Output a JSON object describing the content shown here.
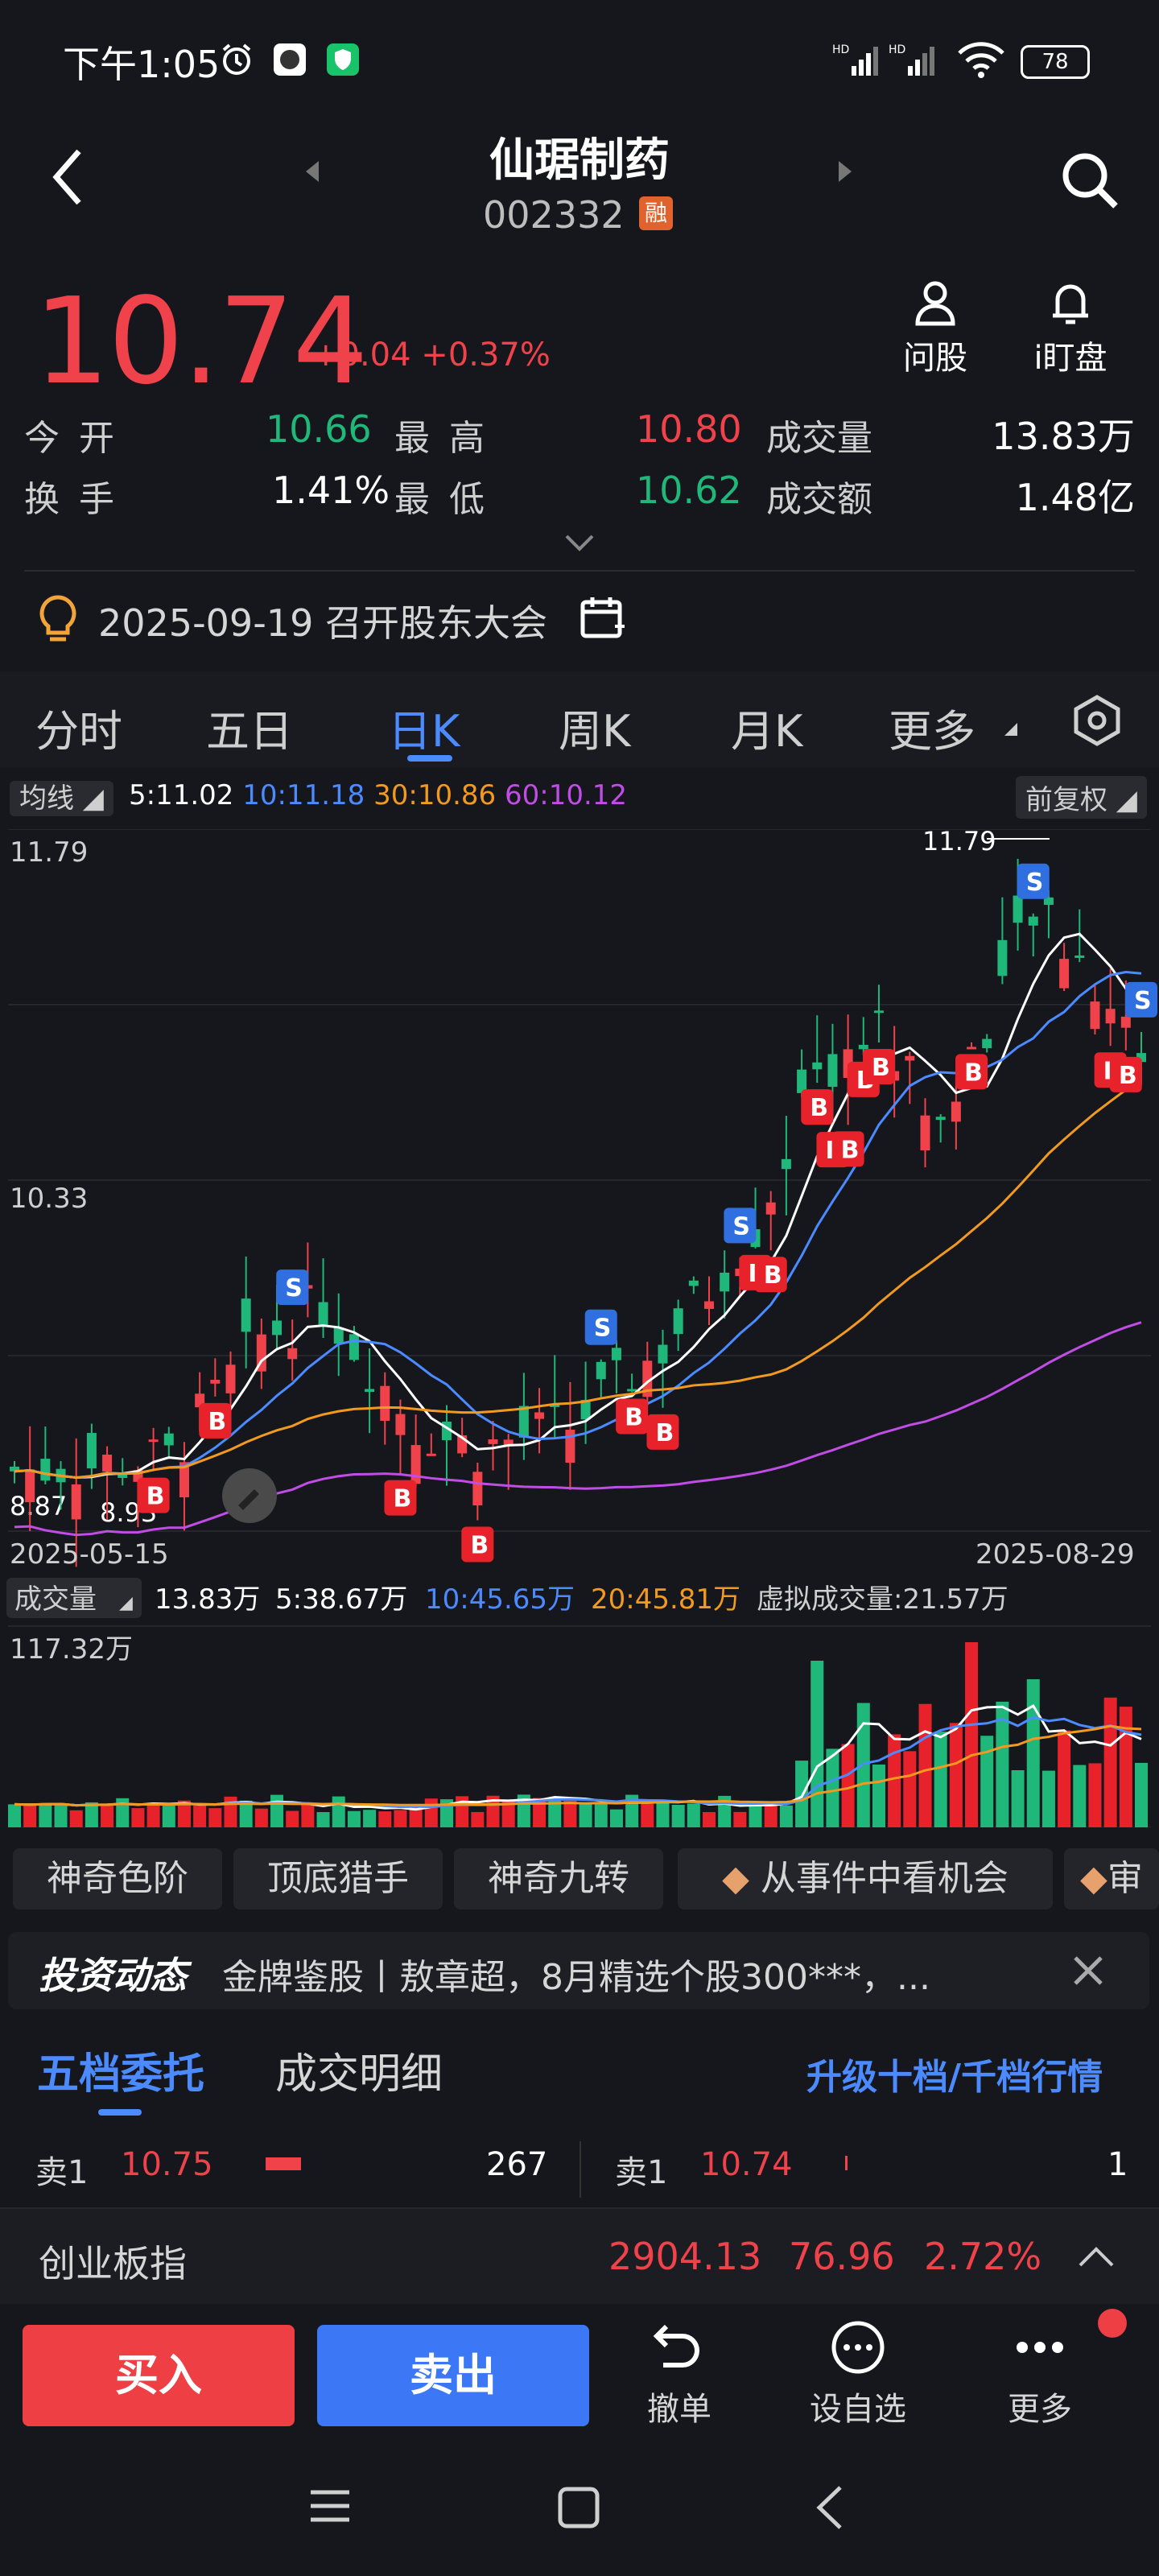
{
  "status_bar": {
    "time": "下午1:05",
    "battery": "78",
    "icons": [
      "alarm-icon",
      "app-icon",
      "shield-app-icon",
      "hd-signal-icon",
      "hd-signal-icon",
      "wifi-icon",
      "battery-icon"
    ]
  },
  "header": {
    "title": "仙琚制药",
    "code": "002332",
    "badge": "融"
  },
  "quote": {
    "price": "10.74",
    "change": "+0.04",
    "change_pct": "+0.37%",
    "action_ask": "问股",
    "action_watch": "i盯盘",
    "open_label": "今开",
    "open": "10.66",
    "high_label": "最高",
    "high": "10.80",
    "vol_label": "成交量",
    "vol": "13.83万",
    "turnover_label": "换手",
    "turnover": "1.41%",
    "low_label": "最低",
    "low": "10.62",
    "amount_label": "成交额",
    "amount": "1.48亿"
  },
  "event": {
    "text": "2025-09-19 召开股东大会"
  },
  "tabs": [
    "分时",
    "五日",
    "日K",
    "周K",
    "月K",
    "更多"
  ],
  "active_tab": "日K",
  "chart_data": {
    "type": "candlestick",
    "ma_label": "均线",
    "ma": [
      {
        "label": "5:11.02",
        "color": "#ffffff"
      },
      {
        "label": "10:11.18",
        "color": "#4b8bff"
      },
      {
        "label": "30:10.86",
        "color": "#f29a1f"
      },
      {
        "label": "60:10.12",
        "color": "#c04de6"
      }
    ],
    "adjust": "前复权",
    "y_ticks": [
      "11.79",
      "10.33"
    ],
    "max_label": "11.79",
    "min_label": "8.93",
    "low_left_label": "8.87",
    "x_start": "2025-05-15",
    "x_end": "2025-08-29",
    "volume": {
      "label": "成交量",
      "current": "13.83万",
      "ma5": "5:38.67万",
      "ma10": "10:45.65万",
      "ma20": "20:45.81万",
      "virtual": "虚拟成交量:21.57万",
      "max": "117.32万"
    }
  },
  "features": [
    "神奇色阶",
    "顶底猎手",
    "神奇九转",
    "从事件中看机会",
    "审"
  ],
  "news": {
    "brand": "投资动态",
    "text": "金牌鉴股丨敖章超，8月精选个股300***，..."
  },
  "orderbook": {
    "tab1": "五档委托",
    "tab2": "成交明细",
    "upgrade": "升级十档/千档行情",
    "left": {
      "label": "卖1",
      "price": "10.75",
      "qty": "267"
    },
    "right": {
      "label": "卖1",
      "price": "10.74",
      "qty": "1"
    }
  },
  "index": {
    "name": "创业板指",
    "value": "2904.13",
    "change": "76.96",
    "pct": "2.72%"
  },
  "bottom": {
    "buy": "买入",
    "sell": "卖出",
    "cancel": "撤单",
    "watchlist": "设自选",
    "more": "更多"
  }
}
